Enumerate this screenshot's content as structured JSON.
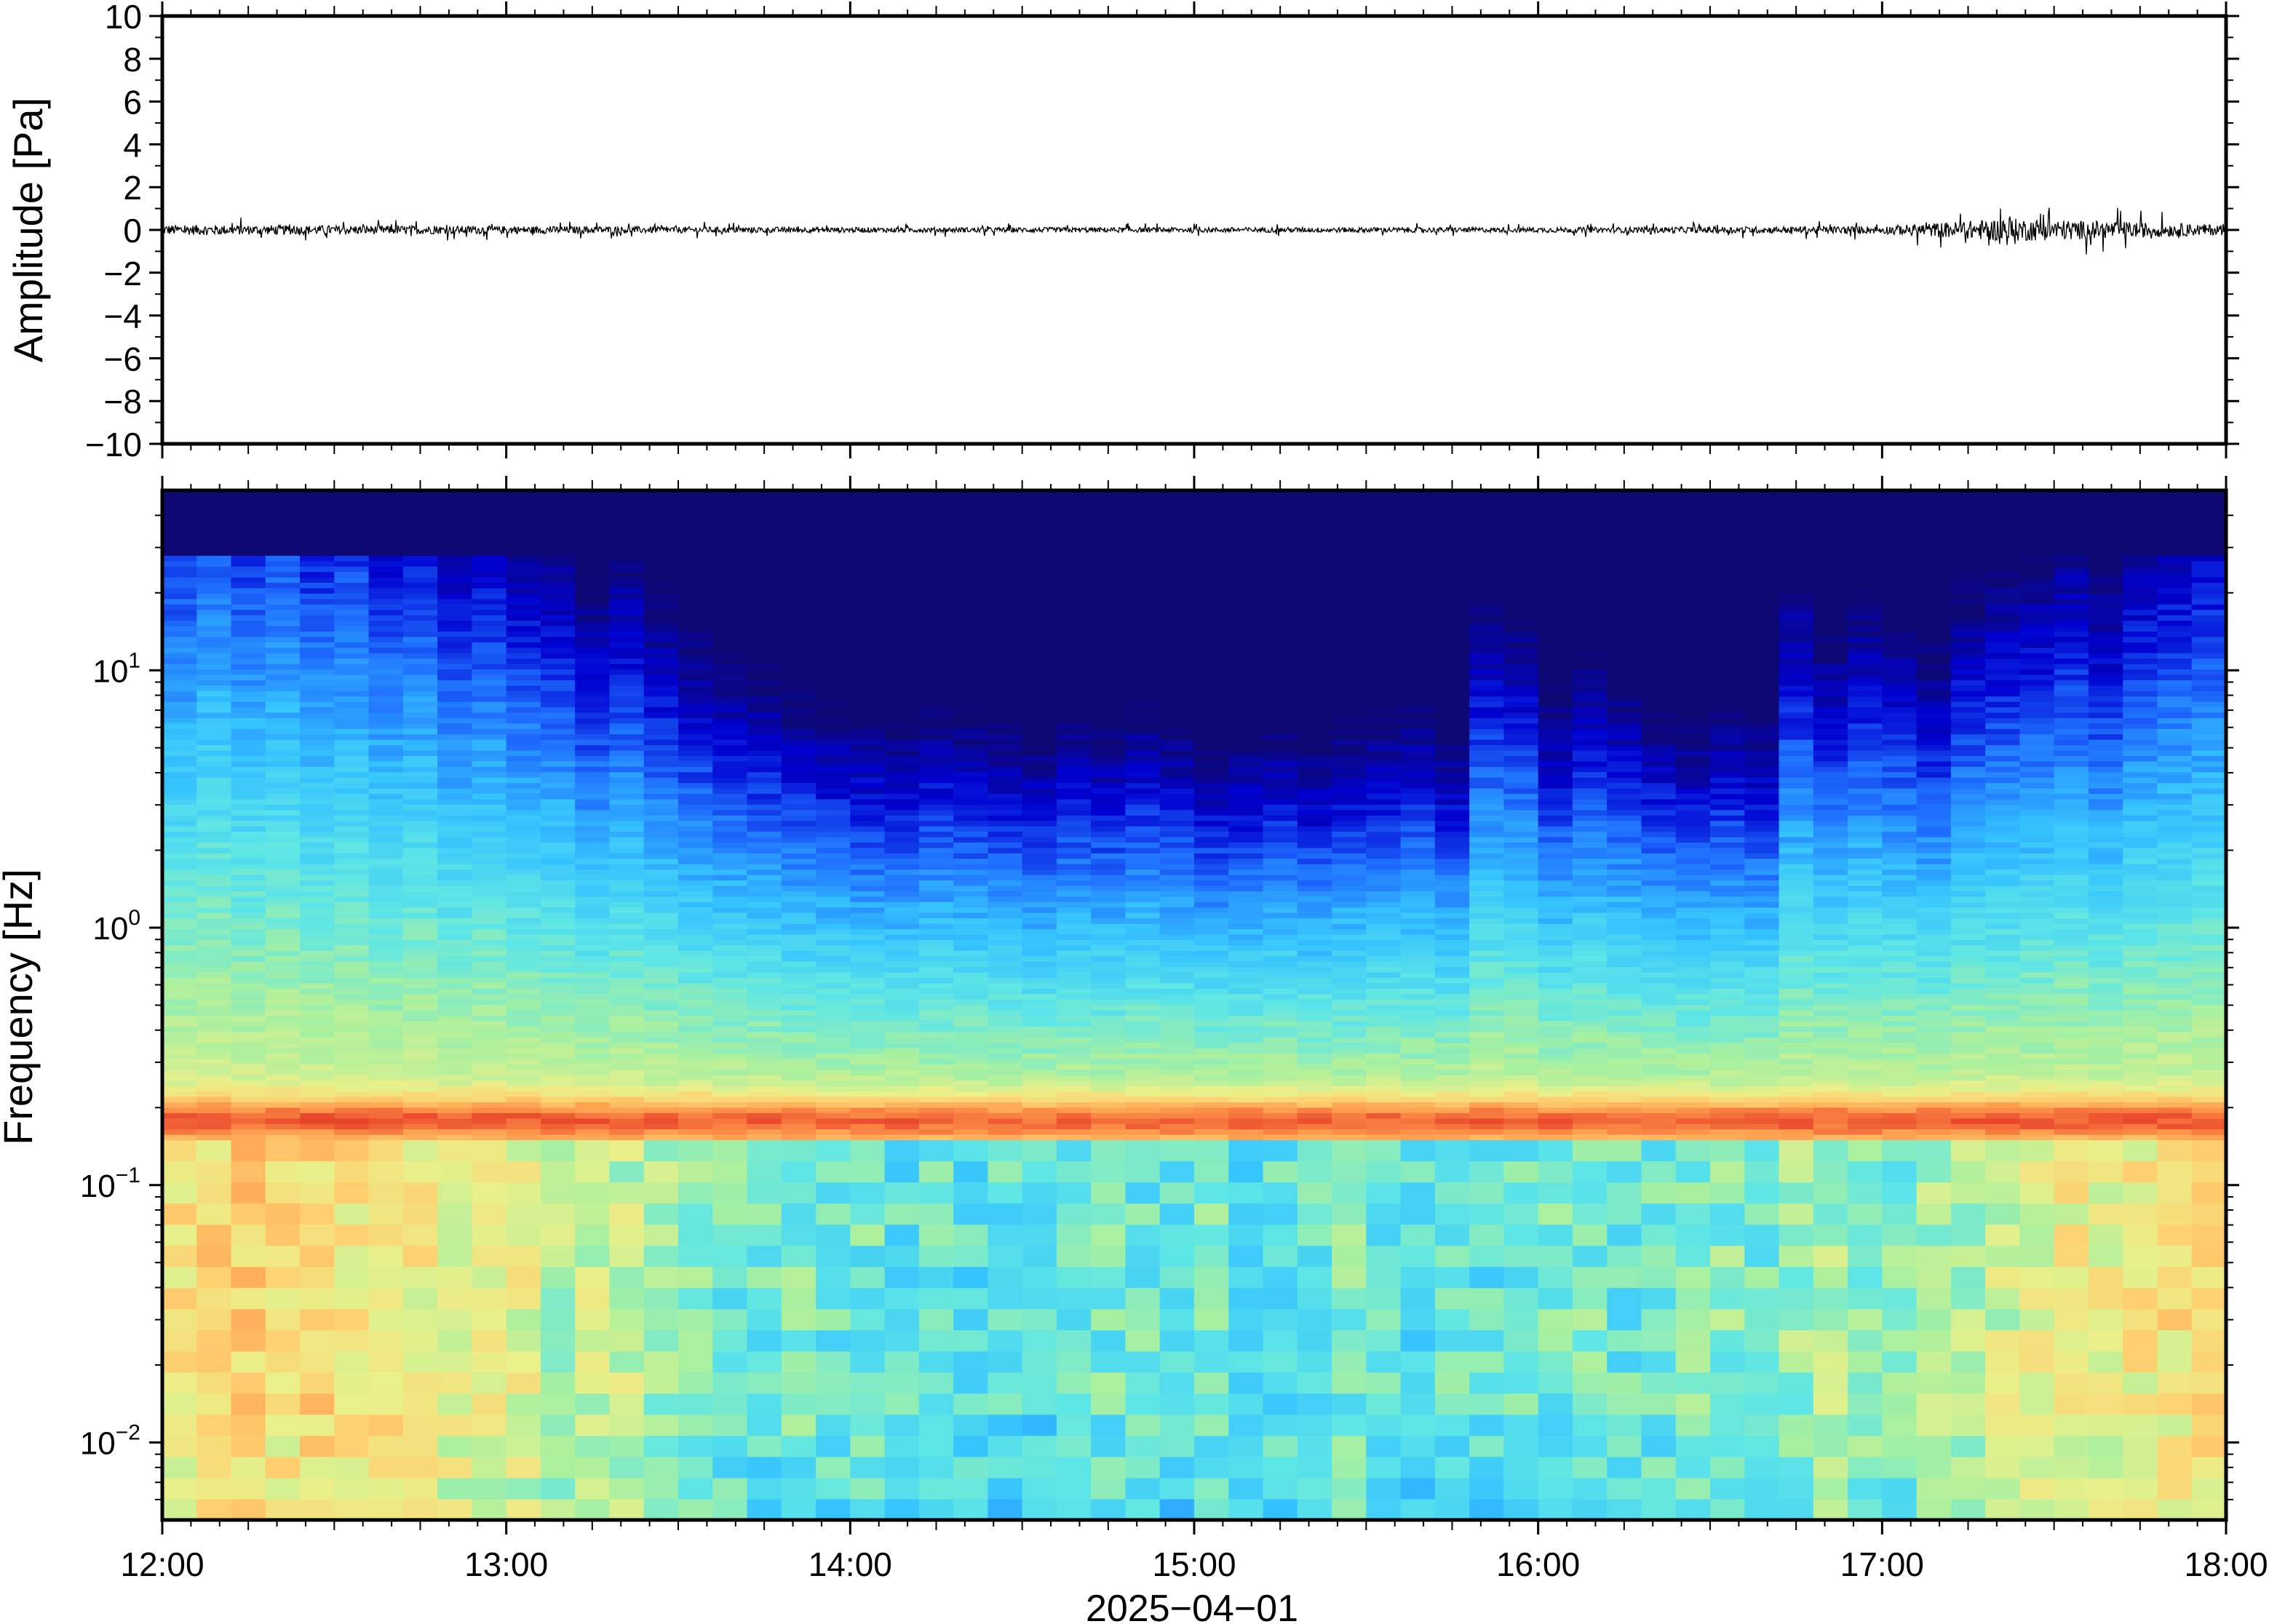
{
  "chart_data": [
    {
      "type": "line",
      "panel": "waveform",
      "ylabel": "Amplitude [Pa]",
      "xlabel": "",
      "ylim": [
        -10,
        10
      ],
      "yticks": [
        10,
        8,
        6,
        4,
        2,
        0,
        -2,
        -4,
        -6,
        -8,
        -10
      ],
      "ytick_labels": [
        "10",
        "8",
        "6",
        "4",
        "2",
        "0",
        "−2",
        "−4",
        "−6",
        "−8",
        "−10"
      ],
      "xlim": [
        "12:00",
        "18:00"
      ],
      "grid": false,
      "trace_color": "#000000",
      "series": [
        {
          "x": [
            "12:00",
            "13:00",
            "14:00",
            "15:00",
            "16:00",
            "17:00",
            "17:22",
            "18:00"
          ],
          "y": [
            0,
            0,
            0,
            0,
            0,
            0,
            0,
            0
          ],
          "noise_amplitude": [
            0.4,
            0.3,
            0.2,
            0.2,
            0.2,
            0.3,
            0.9,
            0.4
          ]
        }
      ]
    },
    {
      "type": "heatmap",
      "panel": "spectrogram",
      "ylabel": "Frequency [Hz]",
      "xlabel": "2025−04−01",
      "yscale": "log",
      "ylim": [
        0.005,
        50
      ],
      "yticks": [
        10,
        1,
        0.1,
        0.01
      ],
      "ytick_labels": [
        {
          "base": "10",
          "exp": "1"
        },
        {
          "base": "10",
          "exp": "0"
        },
        {
          "base": "10",
          "exp": "−1"
        },
        {
          "base": "10",
          "exp": "−2"
        }
      ],
      "xtick_labels": [
        "12:00",
        "13:00",
        "14:00",
        "15:00",
        "16:00",
        "17:00",
        "18:00"
      ],
      "xlim": [
        "12:00",
        "18:00"
      ],
      "colormap": "jet",
      "colormap_colors": [
        "#0d0873",
        "#0000d0",
        "#1f6fff",
        "#35c3ff",
        "#5ee6e6",
        "#a8f0a0",
        "#eaf08a",
        "#ffd070",
        "#ff9a4c",
        "#e8432a"
      ],
      "time_columns": 60,
      "microbarom_peak_hz": 0.18,
      "high_freq_level_by_time": [
        0.8,
        0.84,
        0.8,
        0.82,
        0.78,
        0.8,
        0.76,
        0.78,
        0.72,
        0.74,
        0.7,
        0.68,
        0.62,
        0.66,
        0.6,
        0.56,
        0.52,
        0.5,
        0.46,
        0.44,
        0.42,
        0.4,
        0.44,
        0.42,
        0.4,
        0.38,
        0.42,
        0.4,
        0.44,
        0.4,
        0.36,
        0.38,
        0.4,
        0.36,
        0.4,
        0.42,
        0.44,
        0.38,
        0.6,
        0.58,
        0.46,
        0.52,
        0.48,
        0.44,
        0.4,
        0.44,
        0.42,
        0.62,
        0.56,
        0.6,
        0.58,
        0.54,
        0.62,
        0.64,
        0.66,
        0.68,
        0.64,
        0.7,
        0.72,
        0.74
      ],
      "low_freq_level_by_time": [
        0.8,
        0.82,
        0.84,
        0.8,
        0.82,
        0.78,
        0.8,
        0.76,
        0.72,
        0.7,
        0.7,
        0.62,
        0.66,
        0.64,
        0.58,
        0.54,
        0.5,
        0.48,
        0.52,
        0.48,
        0.5,
        0.46,
        0.48,
        0.44,
        0.46,
        0.44,
        0.48,
        0.5,
        0.48,
        0.46,
        0.5,
        0.44,
        0.46,
        0.48,
        0.52,
        0.48,
        0.44,
        0.5,
        0.46,
        0.48,
        0.5,
        0.52,
        0.48,
        0.5,
        0.52,
        0.54,
        0.5,
        0.58,
        0.6,
        0.56,
        0.52,
        0.6,
        0.62,
        0.66,
        0.7,
        0.74,
        0.72,
        0.76,
        0.78,
        0.8
      ]
    }
  ]
}
